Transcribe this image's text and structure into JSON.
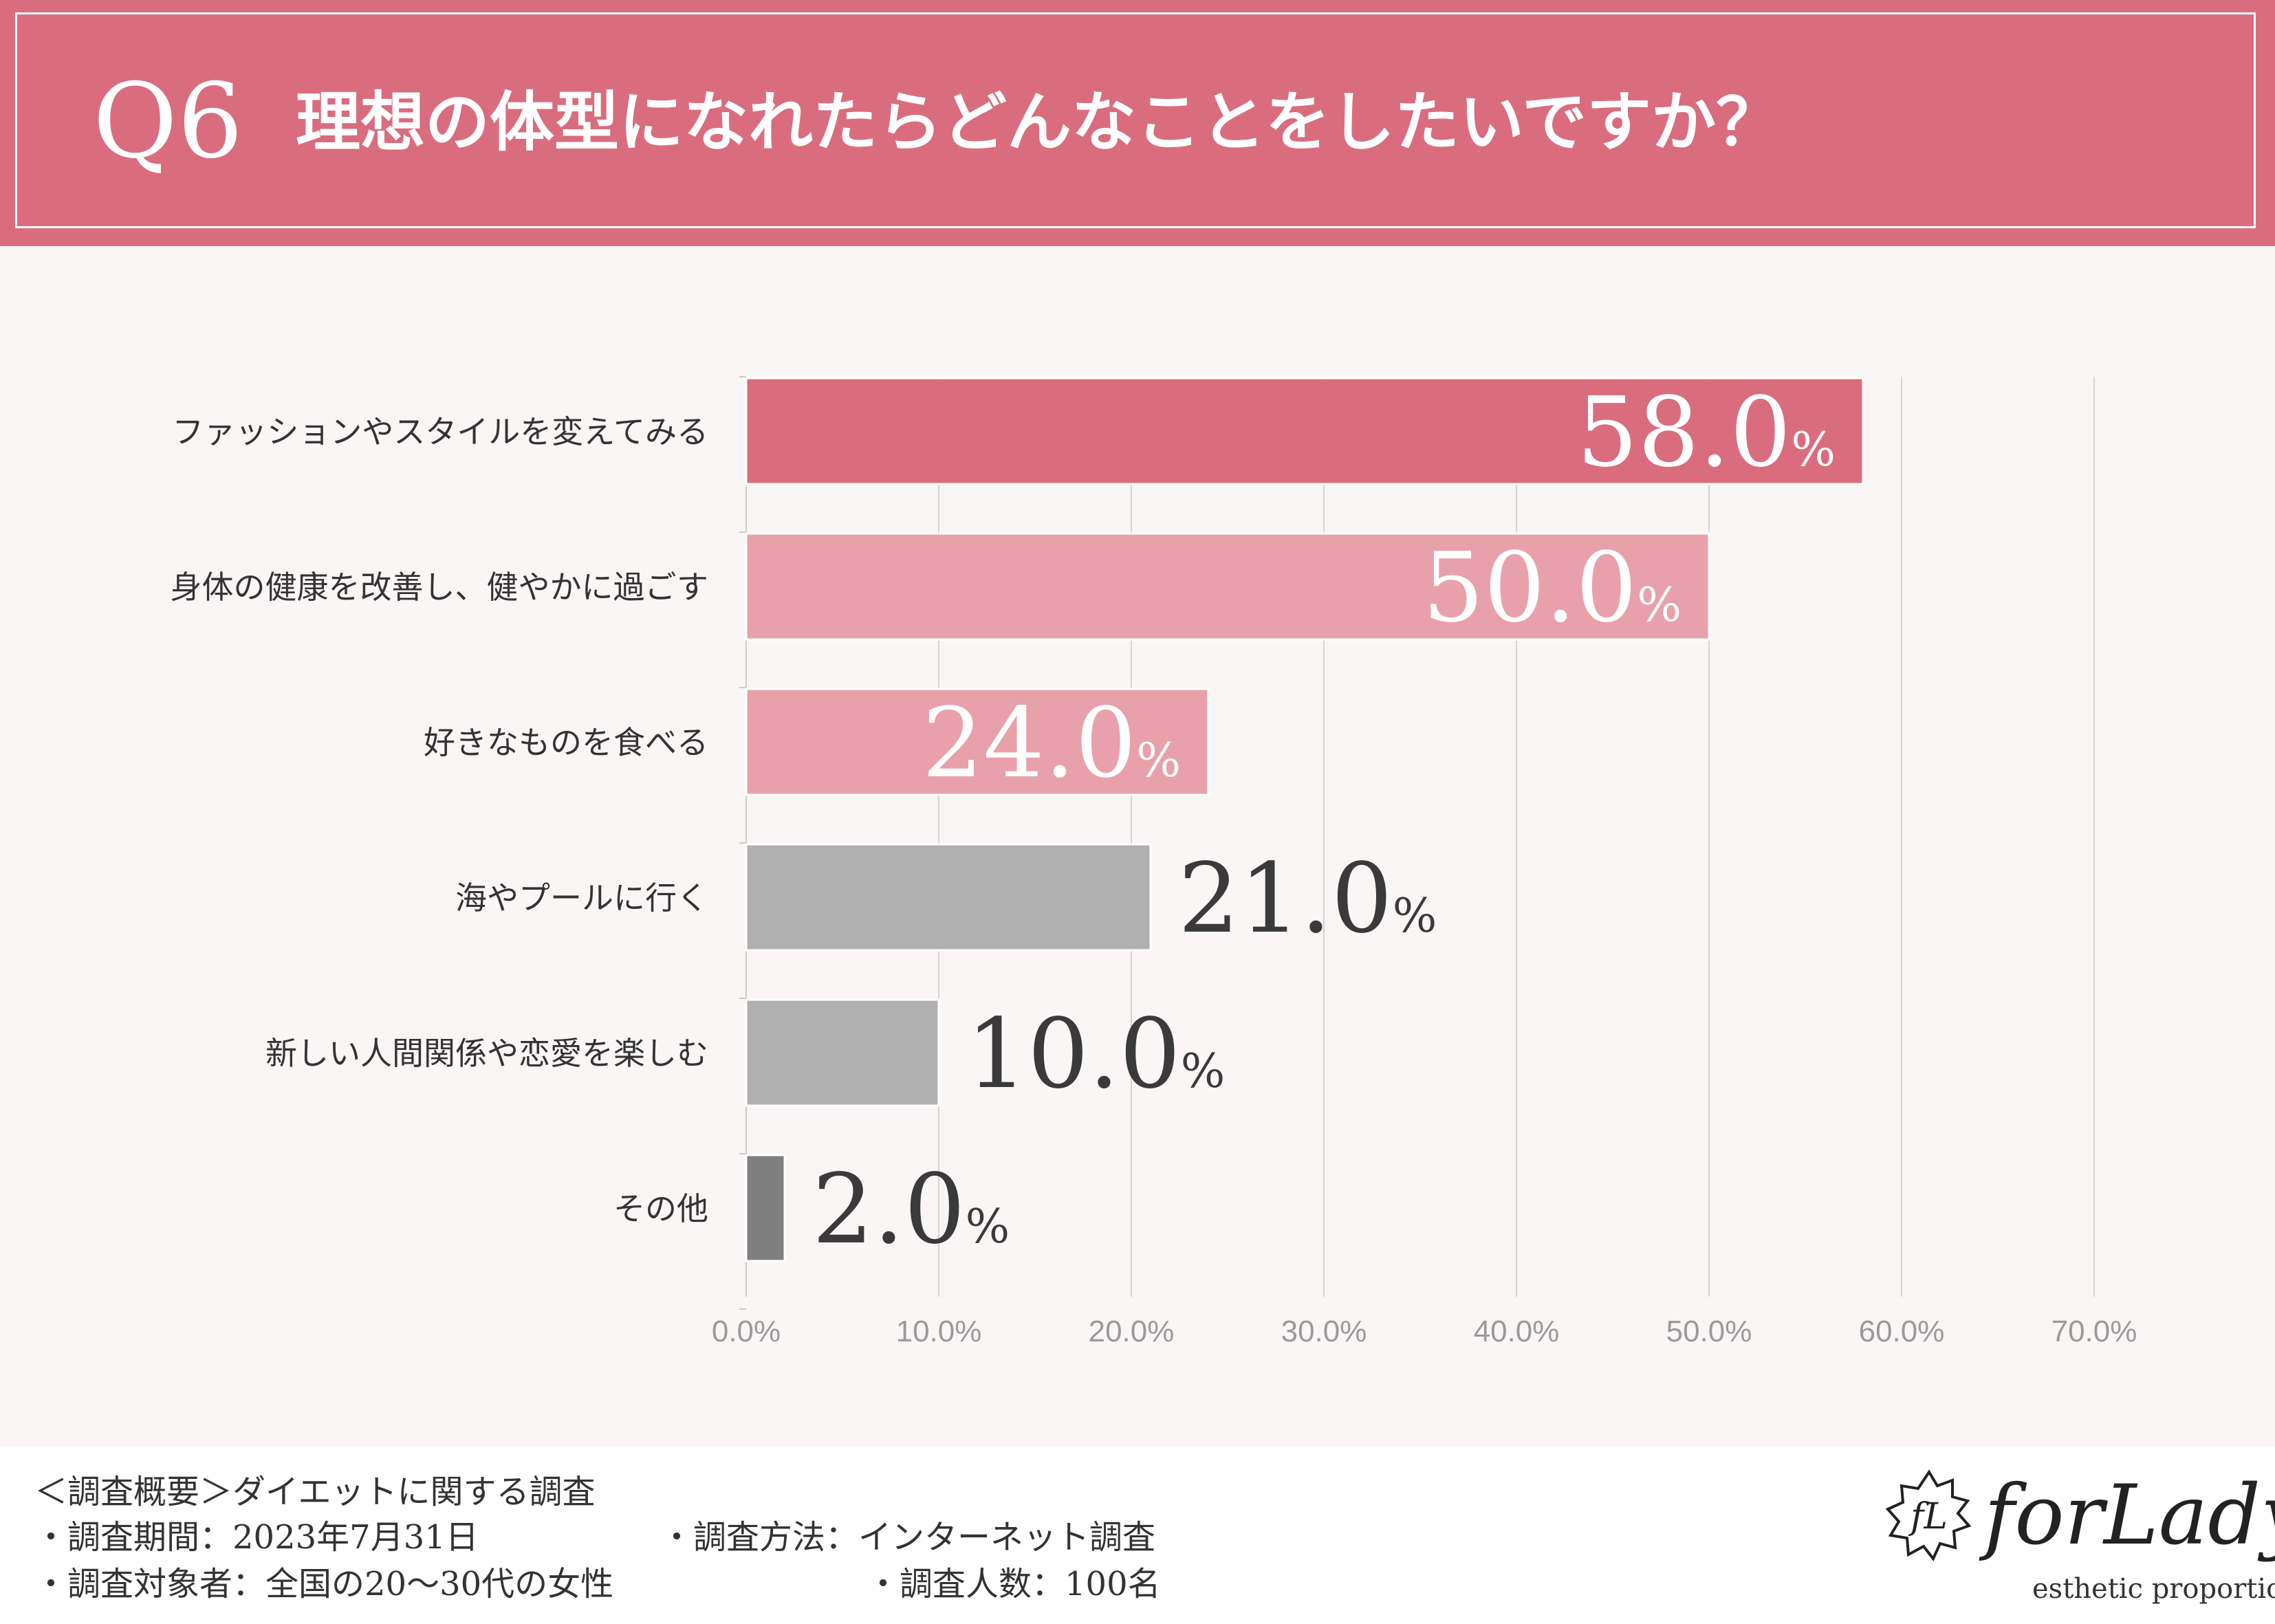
{
  "header": {
    "q_label": "Q6",
    "question": "理想の体型になれたらどんなことをしたいですか？"
  },
  "chart_data": {
    "type": "bar",
    "orientation": "horizontal",
    "categories": [
      "ファッションやスタイルを変えてみる",
      "身体の健康を改善し、健やかに過ごす",
      "好きなものを食べる",
      "海やプールに行く",
      "新しい人間関係や恋愛を楽しむ",
      "その他"
    ],
    "values": [
      58.0,
      50.0,
      24.0,
      21.0,
      10.0,
      2.0
    ],
    "value_labels": [
      "58.0",
      "50.0",
      "24.0",
      "21.0",
      "10.0",
      "2.0"
    ],
    "value_unit": "%",
    "bar_colors": [
      "#d96d7e",
      "#e8a1ab",
      "#e8a1ab",
      "#b0b0b0",
      "#b0b0b0",
      "#7f7f7f"
    ],
    "label_colors": [
      "#ffffff",
      "#ffffff",
      "#ffffff",
      "#3a3a3a",
      "#3a3a3a",
      "#3a3a3a"
    ],
    "label_inside": [
      true,
      true,
      true,
      false,
      false,
      false
    ],
    "xlim": [
      0,
      70
    ],
    "xticks": [
      0,
      10,
      20,
      30,
      40,
      50,
      60,
      70
    ],
    "xtick_labels": [
      "0.0%",
      "10.0%",
      "20.0%",
      "30.0%",
      "40.0%",
      "50.0%",
      "60.0%",
      "70.0%"
    ],
    "grid": true,
    "legend": "none",
    "title": "",
    "xlabel": "",
    "ylabel": ""
  },
  "footer": {
    "summary": "＜調査概要＞ダイエットに関する調査",
    "period": "・調査期間：2023年7月31日",
    "method": "・調査方法：インターネット調査",
    "target": "・調査対象者：全国の20〜30代の女性",
    "count": "・調査人数：100名"
  },
  "brand": {
    "mark": "fL",
    "name": "forLady",
    "tagline": "esthetic proportion"
  }
}
